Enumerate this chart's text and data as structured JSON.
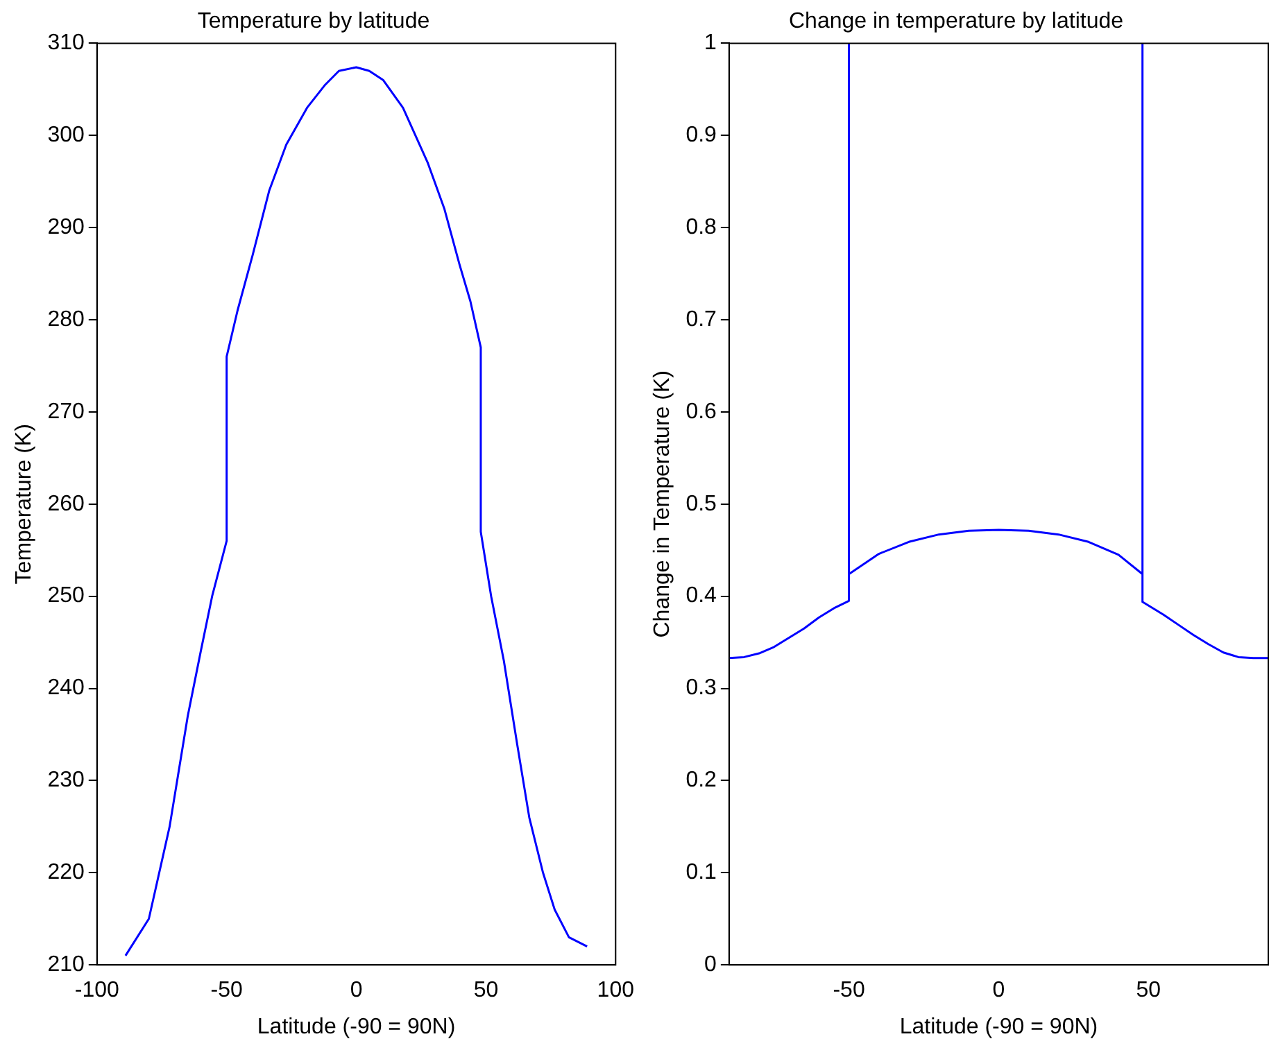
{
  "chart_data": [
    {
      "type": "line",
      "title": "Temperature by latitude",
      "xlabel": "Latitude (-90 = 90N)",
      "ylabel": "Temperature (K)",
      "x": [
        -89,
        -80,
        -72,
        -65,
        -60,
        -55.6,
        -50,
        -50,
        -45.8,
        -40,
        -33.6,
        -27,
        -19,
        -12,
        -6.7,
        0,
        5,
        10.4,
        18,
        27.6,
        34,
        39.8,
        44,
        48,
        48,
        52,
        56.9,
        62,
        66.7,
        72,
        76.5,
        82,
        89
      ],
      "series": [
        {
          "color": "#0000ff",
          "values": [
            211,
            215,
            225,
            237,
            244,
            250,
            256,
            276,
            281,
            287,
            294,
            299,
            303,
            305.5,
            307,
            307.4,
            307,
            306,
            303,
            297,
            292,
            286,
            282,
            277,
            257,
            250,
            243,
            234,
            226,
            220,
            216,
            213,
            212
          ]
        }
      ],
      "xlim": [
        -100,
        100
      ],
      "xticks": [
        -100,
        -50,
        0,
        50,
        100
      ],
      "ylim": [
        210,
        310
      ],
      "yticks": [
        210,
        220,
        230,
        240,
        250,
        260,
        270,
        280,
        290,
        300,
        310
      ]
    },
    {
      "type": "line",
      "title": "Change in temperature by latitude",
      "xlabel": "Latitude (-90 = 90N)",
      "ylabel": "Change in Temperature (K)",
      "x": [
        -90,
        -85,
        -80,
        -75,
        -70,
        -65,
        -60,
        -55,
        -50,
        -50,
        -50,
        -40,
        -30,
        -20,
        -10,
        0,
        10,
        20,
        30,
        40,
        48,
        48,
        48,
        55,
        60,
        65,
        70,
        75,
        80,
        85,
        90
      ],
      "series": [
        {
          "color": "#0000ff",
          "values": [
            0.333,
            0.334,
            0.338,
            0.345,
            0.355,
            0.365,
            0.377,
            0.387,
            0.395,
            1,
            0.424,
            0.446,
            0.459,
            0.467,
            0.471,
            0.472,
            0.471,
            0.467,
            0.459,
            0.445,
            0.424,
            1,
            0.394,
            0.38,
            0.369,
            0.358,
            0.348,
            0.339,
            0.334,
            0.333,
            0.333
          ]
        }
      ],
      "xlim": [
        -90,
        90
      ],
      "xticks": [
        -50,
        0,
        50
      ],
      "ylim": [
        0,
        1
      ],
      "yticks": [
        0,
        0.1,
        0.2,
        0.3,
        0.4,
        0.5,
        0.6,
        0.7,
        0.8,
        0.9,
        1
      ]
    }
  ]
}
